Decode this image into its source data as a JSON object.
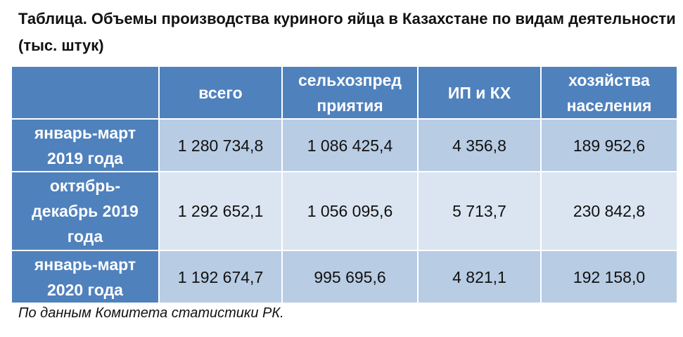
{
  "header": {
    "title": "Таблица. Объемы производства куриного яйца в Казахстане по видам деятельности (тыс. штук)"
  },
  "table": {
    "columns": [
      [],
      [
        "всего"
      ],
      [
        "сельхозпред",
        "приятия"
      ],
      [
        "ИП и КХ"
      ],
      [
        "хозяйства",
        "населения"
      ]
    ],
    "rows": [
      {
        "label": [
          "январь-март",
          "2019 года"
        ],
        "cells": [
          "1 280 734,8",
          "1 086 425,4",
          "4 356,8",
          "189 952,6"
        ]
      },
      {
        "label": [
          "октябрь-",
          "декабрь 2019",
          "года"
        ],
        "cells": [
          "1 292 652,1",
          "1 056 095,6",
          "5 713,7",
          "230 842,8"
        ]
      },
      {
        "label": [
          "январь-март",
          "2020 года"
        ],
        "cells": [
          "1 192 674,7",
          "995 695,6",
          "4 821,1",
          "192 158,0"
        ]
      }
    ]
  },
  "footer": {
    "source": "По данным Комитета статистики РК."
  }
}
